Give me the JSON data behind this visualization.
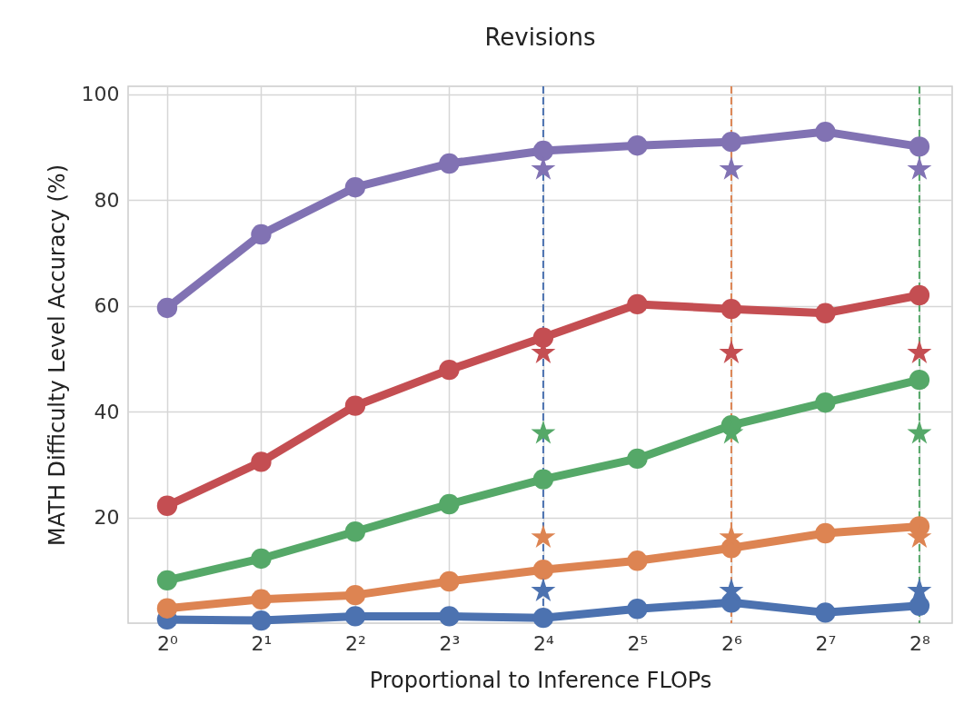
{
  "chart_data": {
    "type": "line",
    "title": "Revisions",
    "xlabel": "Proportional to Inference FLOPs",
    "ylabel": "MATH Difficulty Level Accuracy (%)",
    "x": [
      1,
      2,
      4,
      8,
      16,
      32,
      64,
      128,
      256
    ],
    "series": [
      {
        "color": "#4c72b0",
        "marker": "circle",
        "values": [
          0.7,
          0.5,
          1.3,
          1.3,
          1.0,
          2.7,
          3.9,
          2.0,
          3.3
        ]
      },
      {
        "color": "#dd8452",
        "marker": "circle",
        "values": [
          2.8,
          4.5,
          5.3,
          7.9,
          10.1,
          11.8,
          14.2,
          17.0,
          18.3
        ]
      },
      {
        "color": "#55a868",
        "marker": "circle",
        "values": [
          8.1,
          12.2,
          17.3,
          22.5,
          27.2,
          31.1,
          37.4,
          41.7,
          46.0
        ]
      },
      {
        "color": "#c44e52",
        "marker": "circle",
        "values": [
          22.2,
          30.5,
          41.1,
          47.9,
          54.0,
          60.3,
          59.4,
          58.6,
          62.0
        ]
      },
      {
        "color": "#8172b3",
        "marker": "circle",
        "values": [
          59.6,
          73.5,
          82.4,
          86.9,
          89.3,
          90.3,
          91.0,
          92.9,
          90.1
        ]
      },
      {
        "type": "scatter",
        "color": "#4c72b0",
        "marker": "star",
        "x": [
          16,
          64,
          256
        ],
        "values": [
          6.1,
          6.1,
          6.1
        ]
      },
      {
        "type": "scatter",
        "color": "#dd8452",
        "marker": "star",
        "x": [
          16,
          64,
          256
        ],
        "values": [
          16.2,
          16.2,
          16.2
        ]
      },
      {
        "type": "scatter",
        "color": "#55a868",
        "marker": "star",
        "x": [
          16,
          64,
          256
        ],
        "values": [
          35.9,
          35.9,
          35.9
        ]
      },
      {
        "type": "scatter",
        "color": "#c44e52",
        "marker": "star",
        "x": [
          16,
          64,
          256
        ],
        "values": [
          51.1,
          51.1,
          51.1
        ]
      },
      {
        "type": "scatter",
        "color": "#8172b3",
        "marker": "star",
        "x": [
          16,
          64,
          256
        ],
        "values": [
          85.8,
          85.8,
          85.8
        ]
      }
    ],
    "log": "x",
    "xlim": [
      0.75,
      326
    ],
    "xticks": [
      {
        "value": 1,
        "label": "2⁰"
      },
      {
        "value": 2,
        "label": "2¹"
      },
      {
        "value": 4,
        "label": "2²"
      },
      {
        "value": 8,
        "label": "2³"
      },
      {
        "value": 16,
        "label": "2⁴"
      },
      {
        "value": 32,
        "label": "2⁵"
      },
      {
        "value": 64,
        "label": "2⁶"
      },
      {
        "value": 128,
        "label": "2⁷"
      },
      {
        "value": 256,
        "label": "2⁸"
      }
    ],
    "ylim": [
      0,
      101.5
    ],
    "yticks": [
      20,
      40,
      60,
      80,
      100
    ],
    "ref_lines": [
      {
        "axis": "x",
        "value": 16,
        "color": "#4c72b0",
        "line_style": "dashed"
      },
      {
        "axis": "x",
        "value": 64,
        "color": "#dd8452",
        "line_style": "dashed"
      },
      {
        "axis": "x",
        "value": 256,
        "color": "#55a868",
        "line_style": "dashed"
      }
    ],
    "grid": true
  }
}
